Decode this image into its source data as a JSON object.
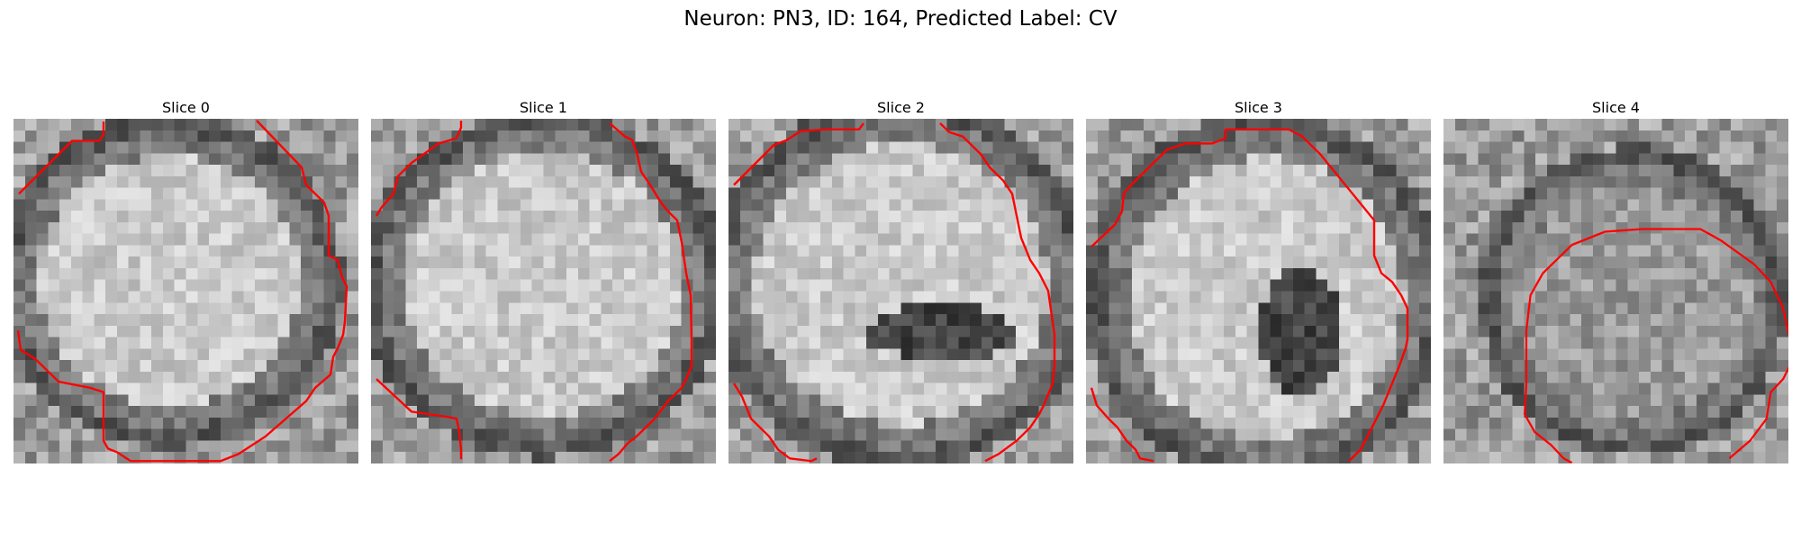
{
  "figure": {
    "title": "Neuron: PN3, ID: 164, Predicted Label: CV"
  },
  "panels": [
    {
      "title": "Slice 0",
      "contour_color": "#ff0000"
    },
    {
      "title": "Slice 1",
      "contour_color": "#ff0000"
    },
    {
      "title": "Slice 2",
      "contour_color": "#ff0000"
    },
    {
      "title": "Slice 3",
      "contour_color": "#ff0000"
    },
    {
      "title": "Slice 4",
      "contour_color": "#ff0000"
    }
  ],
  "image_colormap": "grayscale"
}
